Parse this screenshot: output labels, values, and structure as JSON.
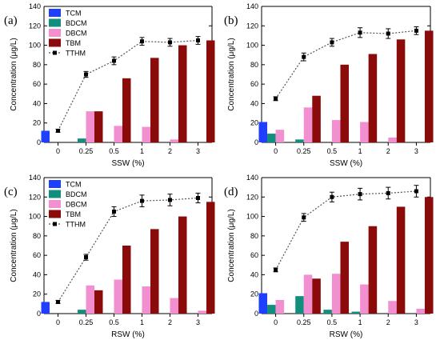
{
  "colors": {
    "TCM": "#1f3fff",
    "BDCM": "#128e7e",
    "DBCM": "#f28fd0",
    "TBM": "#8b0a0a",
    "TTHM": "#000000",
    "dotted_line": "#555555"
  },
  "chart_data": [
    {
      "type": "bar",
      "panel_label": "(a)",
      "xlabel": "SSW (%)",
      "ylabel": "Concentration (μg/L)",
      "categories": [
        "0",
        "0.25",
        "0.5",
        "1",
        "2",
        "3"
      ],
      "ylim": [
        0,
        140
      ],
      "yticks": [
        0,
        20,
        40,
        60,
        80,
        100,
        120,
        140
      ],
      "legend": {
        "placement": "top-left",
        "entries": [
          "TCM",
          "BDCM",
          "DBCM",
          "TBM",
          "TTHM"
        ]
      },
      "series": [
        {
          "name": "TCM",
          "values": [
            12,
            0,
            0,
            0,
            0,
            0
          ]
        },
        {
          "name": "BDCM",
          "values": [
            0,
            4,
            0,
            0,
            0,
            0
          ]
        },
        {
          "name": "DBCM",
          "values": [
            0,
            32,
            17,
            16,
            3,
            0
          ]
        },
        {
          "name": "TBM",
          "values": [
            0,
            32,
            66,
            87,
            100,
            105
          ]
        }
      ],
      "line": {
        "name": "TTHM",
        "values": [
          12,
          70,
          84,
          104,
          103,
          105
        ],
        "errors": [
          1.5,
          3,
          4,
          4,
          4,
          4
        ]
      }
    },
    {
      "type": "bar",
      "panel_label": "(b)",
      "xlabel": "SSW (%)",
      "ylabel": "Concentration (μg/L)",
      "categories": [
        "0",
        "0.25",
        "0.5",
        "1",
        "2",
        "3"
      ],
      "ylim": [
        0,
        140
      ],
      "yticks": [
        0,
        20,
        40,
        60,
        80,
        100,
        120,
        140
      ],
      "series": [
        {
          "name": "TCM",
          "values": [
            21,
            0,
            0,
            0,
            0,
            0
          ]
        },
        {
          "name": "BDCM",
          "values": [
            9,
            3,
            0,
            0,
            0,
            0
          ]
        },
        {
          "name": "DBCM",
          "values": [
            13,
            36,
            23,
            21,
            5,
            0
          ]
        },
        {
          "name": "TBM",
          "values": [
            0,
            48,
            80,
            91,
            106,
            115
          ]
        }
      ],
      "line": {
        "name": "TTHM",
        "values": [
          45,
          88,
          103,
          113,
          112,
          115
        ],
        "errors": [
          2,
          4,
          4,
          5,
          5,
          4
        ]
      }
    },
    {
      "type": "bar",
      "panel_label": "(c)",
      "xlabel": "RSW (%)",
      "ylabel": "Concentration (μg/L)",
      "categories": [
        "0",
        "0.25",
        "0.5",
        "1",
        "2",
        "3"
      ],
      "ylim": [
        0,
        140
      ],
      "yticks": [
        0,
        20,
        40,
        60,
        80,
        100,
        120,
        140
      ],
      "legend": {
        "placement": "top-left",
        "entries": [
          "TCM",
          "BDCM",
          "DBCM",
          "TBM",
          "TTHM"
        ]
      },
      "series": [
        {
          "name": "TCM",
          "values": [
            12,
            0,
            0,
            0,
            0,
            0
          ]
        },
        {
          "name": "BDCM",
          "values": [
            0,
            4,
            0,
            0,
            0,
            0
          ]
        },
        {
          "name": "DBCM",
          "values": [
            0,
            29,
            35,
            28,
            16,
            3
          ]
        },
        {
          "name": "TBM",
          "values": [
            0,
            24,
            70,
            87,
            100,
            115
          ]
        }
      ],
      "line": {
        "name": "TTHM",
        "values": [
          12,
          58,
          105,
          116,
          117,
          119
        ],
        "errors": [
          1.5,
          3,
          5,
          6,
          6,
          5
        ]
      }
    },
    {
      "type": "bar",
      "panel_label": "(d)",
      "xlabel": "RSW (%)",
      "ylabel": "Concentration (μg/L)",
      "categories": [
        "0",
        "0.25",
        "0.5",
        "1",
        "2",
        "3"
      ],
      "ylim": [
        0,
        140
      ],
      "yticks": [
        0,
        20,
        40,
        60,
        80,
        100,
        120,
        140
      ],
      "series": [
        {
          "name": "TCM",
          "values": [
            21,
            0,
            0,
            0,
            0,
            0
          ]
        },
        {
          "name": "BDCM",
          "values": [
            9,
            18,
            4,
            2,
            0,
            0
          ]
        },
        {
          "name": "DBCM",
          "values": [
            14,
            40,
            41,
            30,
            13,
            5
          ]
        },
        {
          "name": "TBM",
          "values": [
            0,
            36,
            74,
            90,
            110,
            120
          ]
        }
      ],
      "line": {
        "name": "TTHM",
        "values": [
          45,
          99,
          120,
          123,
          124,
          126
        ],
        "errors": [
          2,
          4,
          5,
          6,
          6,
          6
        ]
      }
    }
  ]
}
